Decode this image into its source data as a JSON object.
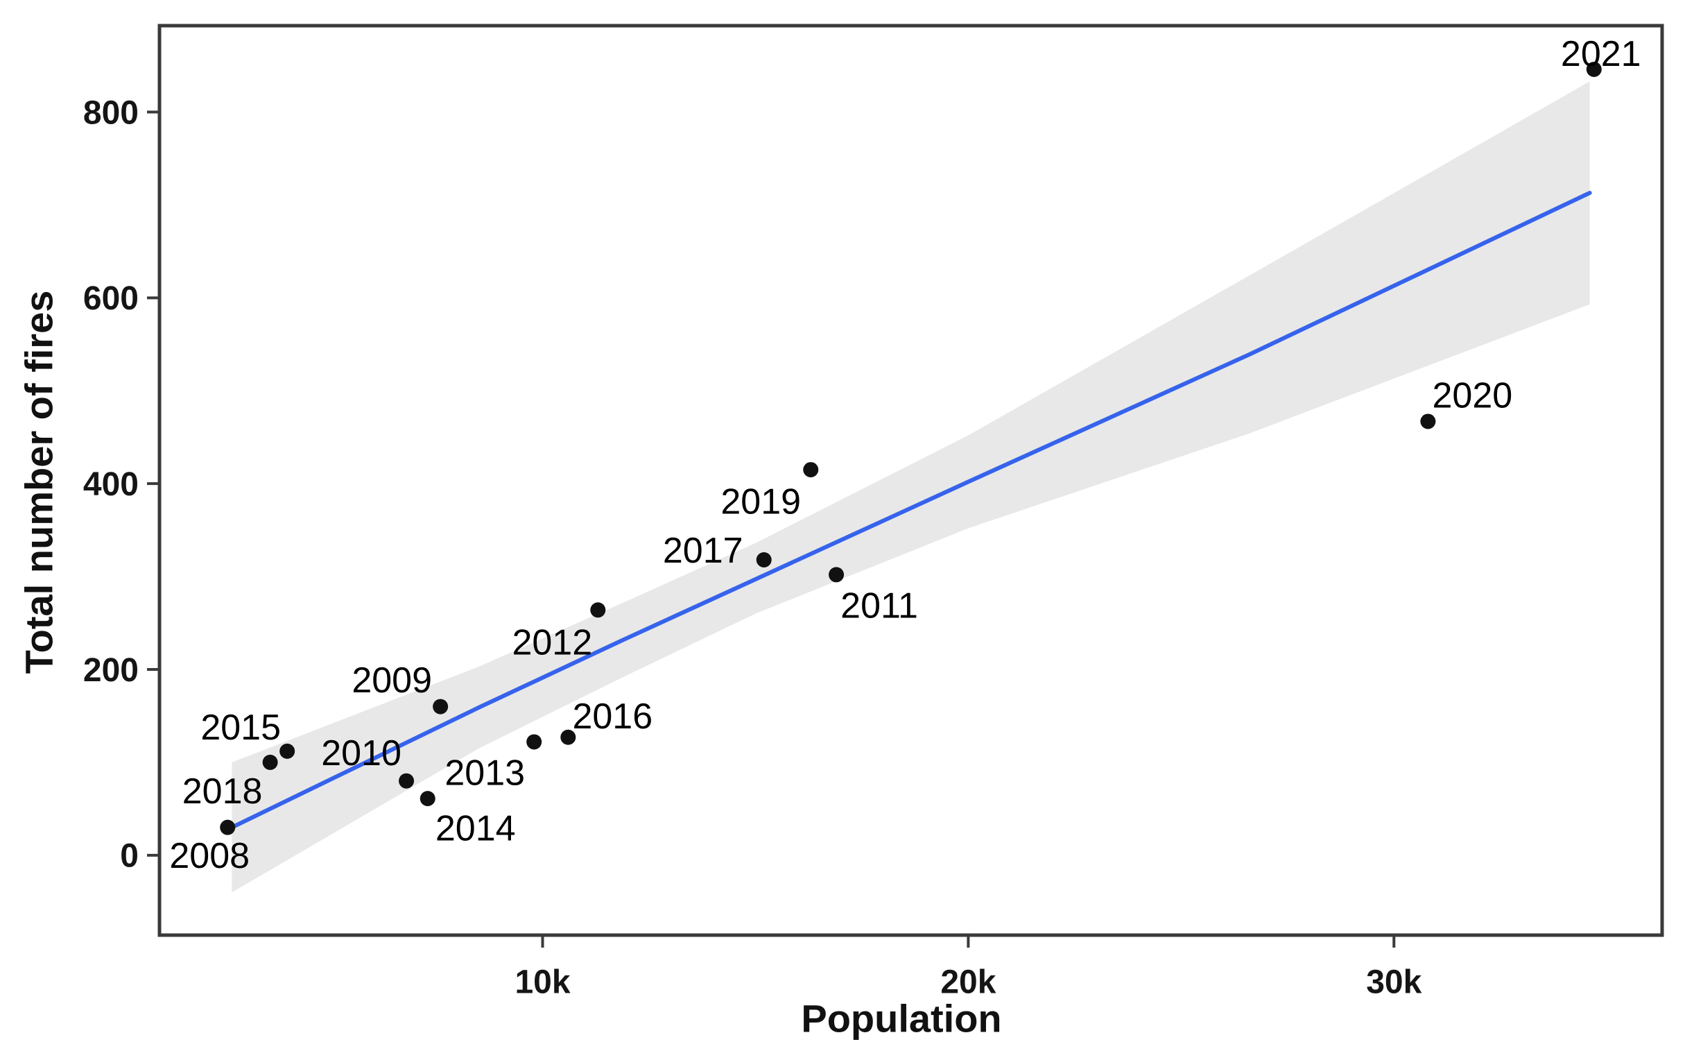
{
  "chart_data": {
    "type": "scatter",
    "title": "",
    "xlabel": "Population",
    "ylabel": "Total number of fires",
    "grid": false,
    "legend": "none",
    "x_axis": {
      "range": [
        1000,
        36300
      ],
      "ticks": [
        {
          "value": 10000,
          "label": "10k"
        },
        {
          "value": 20000,
          "label": "20k"
        },
        {
          "value": 30000,
          "label": "30k"
        }
      ]
    },
    "y_axis": {
      "range": [
        -86,
        893
      ],
      "ticks": [
        {
          "value": 0,
          "label": "0"
        },
        {
          "value": 200,
          "label": "200"
        },
        {
          "value": 400,
          "label": "400"
        },
        {
          "value": 600,
          "label": "600"
        },
        {
          "value": 800,
          "label": "800"
        }
      ]
    },
    "points": [
      {
        "year": "2008",
        "population": 2600,
        "fires": 30,
        "label_offset": [
          -26,
          40
        ]
      },
      {
        "year": "2009",
        "population": 7600,
        "fires": 160,
        "label_offset": [
          -70,
          -39
        ]
      },
      {
        "year": "2010",
        "population": 6800,
        "fires": 80,
        "label_offset": [
          -65,
          -41
        ]
      },
      {
        "year": "2011",
        "population": 16900,
        "fires": 302,
        "label_offset": [
          62,
          44
        ]
      },
      {
        "year": "2012",
        "population": 11300,
        "fires": 264,
        "label_offset": [
          -66,
          46
        ]
      },
      {
        "year": "2013",
        "population": 9800,
        "fires": 122,
        "label_offset": [
          -71,
          44
        ]
      },
      {
        "year": "2014",
        "population": 7300,
        "fires": 61,
        "label_offset": [
          69,
          42
        ]
      },
      {
        "year": "2015",
        "population": 4000,
        "fires": 112,
        "label_offset": [
          -67,
          -35
        ]
      },
      {
        "year": "2016",
        "population": 10600,
        "fires": 127,
        "label_offset": [
          64,
          -31
        ]
      },
      {
        "year": "2017",
        "population": 15200,
        "fires": 318,
        "label_offset": [
          -88,
          -14
        ]
      },
      {
        "year": "2018",
        "population": 3600,
        "fires": 100,
        "label_offset": [
          -69,
          41
        ]
      },
      {
        "year": "2019",
        "population": 16300,
        "fires": 415,
        "label_offset": [
          -72,
          45
        ]
      },
      {
        "year": "2020",
        "population": 30800,
        "fires": 467,
        "label_offset": [
          64,
          -38
        ]
      },
      {
        "year": "2021",
        "population": 34700,
        "fires": 846,
        "label_offset": [
          10,
          -23
        ]
      }
    ],
    "trend_line": {
      "type": "linear-smooth",
      "points": [
        {
          "population": 2700,
          "fires": 30
        },
        {
          "population": 8500,
          "fires": 159
        },
        {
          "population": 11900,
          "fires": 232
        },
        {
          "population": 20000,
          "fires": 402
        },
        {
          "population": 26600,
          "fires": 539
        },
        {
          "population": 34600,
          "fires": 713
        }
      ]
    },
    "confidence_band": {
      "points": [
        {
          "population": 2700,
          "lower": -40,
          "upper": 100
        },
        {
          "population": 8500,
          "lower": 115,
          "upper": 203
        },
        {
          "population": 11900,
          "lower": 192,
          "upper": 272
        },
        {
          "population": 15000,
          "lower": 260,
          "upper": 336
        },
        {
          "population": 20000,
          "lower": 352,
          "upper": 452
        },
        {
          "population": 26600,
          "lower": 454,
          "upper": 624
        },
        {
          "population": 34600,
          "lower": 593,
          "upper": 833
        }
      ]
    },
    "colors": {
      "point": "#111111",
      "trend_line": "#3663EC",
      "confidence_band": "#E8E8E8",
      "panel_border": "#3A3A3A",
      "axis_text": "#151515",
      "background": "#FFFFFF"
    }
  }
}
